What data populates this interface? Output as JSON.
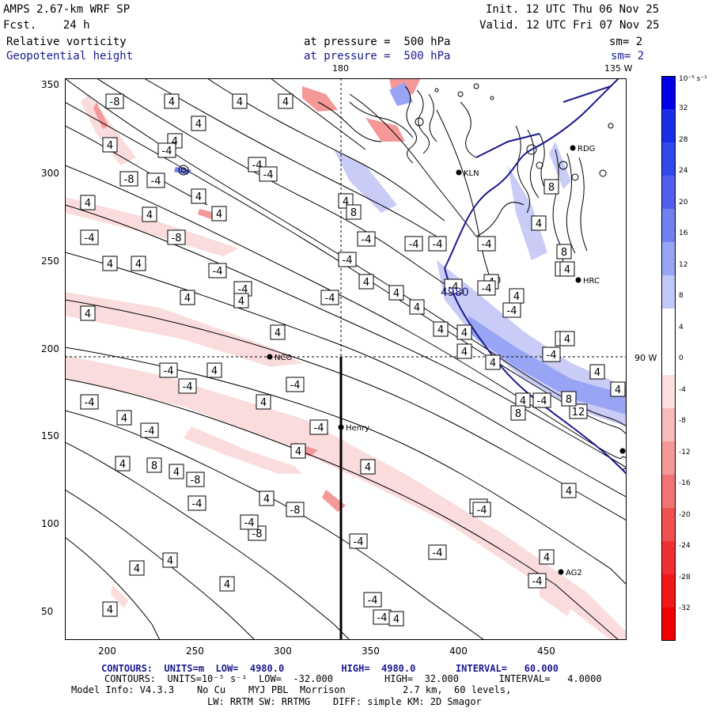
{
  "header": {
    "model": "AMPS 2.67-km WRF SP",
    "init": "Init. 12 UTC Thu 06 Nov 25",
    "fcst": "Fcst.    24 h",
    "valid": "Valid. 12 UTC Fri 07 Nov 25",
    "field1": "Relative vorticity",
    "field1_level": "at pressure =  500 hPa",
    "field1_sm": "sm= 2",
    "field2": "Geopotential height",
    "field2_level": "at pressure =  500 hPa",
    "field2_sm": "sm= 2"
  },
  "map": {
    "lon_top_180": "180",
    "lon_top_135": "135 W",
    "lon_right_90": "90 W",
    "x_ticks": [
      "200",
      "250",
      "300",
      "350",
      "400",
      "450"
    ],
    "y_ticks": [
      "350",
      "300",
      "250",
      "200",
      "150",
      "100",
      "50"
    ],
    "stations": [
      "KLN",
      "RDG",
      "HRC",
      "NCO",
      "Henry",
      "AG2"
    ],
    "contour_center_label": "4980",
    "contour_labels": [
      "-8",
      "4",
      "4",
      "4",
      "4",
      "4",
      "4",
      "-4",
      "-4",
      "-4",
      "-8",
      "-4",
      "4",
      "4",
      "4",
      "4",
      "-8",
      "-4",
      "4",
      "4",
      "-4",
      "-4",
      "4",
      "4",
      "4",
      "4",
      "-4",
      "-4",
      "8",
      "-4",
      "4",
      "-4",
      "-4",
      "-4",
      "-4",
      "4",
      "4",
      "4",
      "4",
      "4",
      "-4",
      "-4",
      "-4",
      "4",
      "4",
      "4",
      "8",
      "8",
      "4",
      "-4",
      "4",
      "4",
      "8",
      "12",
      "8",
      "4",
      "4",
      "4",
      "-4",
      "-4",
      "-4",
      "4",
      "4",
      "-4",
      "-4",
      "-4",
      "4",
      "-4",
      "8",
      "4",
      "-8",
      "4",
      "-4",
      "4",
      "-4",
      "4",
      "-4",
      "-8",
      "4",
      "4",
      "4",
      "4",
      "4",
      "-4",
      "-8",
      "-4",
      "-4",
      "-4",
      "-4",
      "-4",
      "-4",
      "4",
      "4",
      "4",
      "4"
    ],
    "colors": {
      "pos": "#3040e0",
      "neg": "#ff2020",
      "pos_light": "#c8ccf6",
      "neg_light": "#fadcdc",
      "line": "#000000",
      "coast": "#1a1a8c"
    }
  },
  "colorbar": {
    "unit": "10⁻⁵ s⁻¹",
    "labels": [
      "32",
      "28",
      "24",
      "20",
      "16",
      "12",
      "8",
      "4",
      "0",
      "-4",
      "-8",
      "-12",
      "-16",
      "-20",
      "-24",
      "-28",
      "-32"
    ],
    "colors": [
      "#0000e6",
      "#1a2ee8",
      "#3348ea",
      "#5060ec",
      "#7080f0",
      "#98a4f4",
      "#c0c8f8",
      "#ffffff",
      "#ffffff",
      "#fce0e0",
      "#f8bcbc",
      "#f49898",
      "#f07474",
      "#f05050",
      "#f03030",
      "#f01818",
      "#f00000"
    ]
  },
  "footer": {
    "line1": "CONTOURS:  UNITS=m  LOW=  4980.0          HIGH=  4980.0       INTERVAL=   60.000",
    "line2": "CONTOURS:  UNITS=10⁻⁵ s⁻¹  LOW=  -32.000         HIGH=  32.000       INTERVAL=   4.0000",
    "line3": "Model Info: V4.3.3    No Cu    MYJ PBL  Morrison          2.7 km,  60 levels,",
    "line4": "LW: RRTM SW: RRTMG    DIFF: simple KM: 2D Smagor"
  }
}
